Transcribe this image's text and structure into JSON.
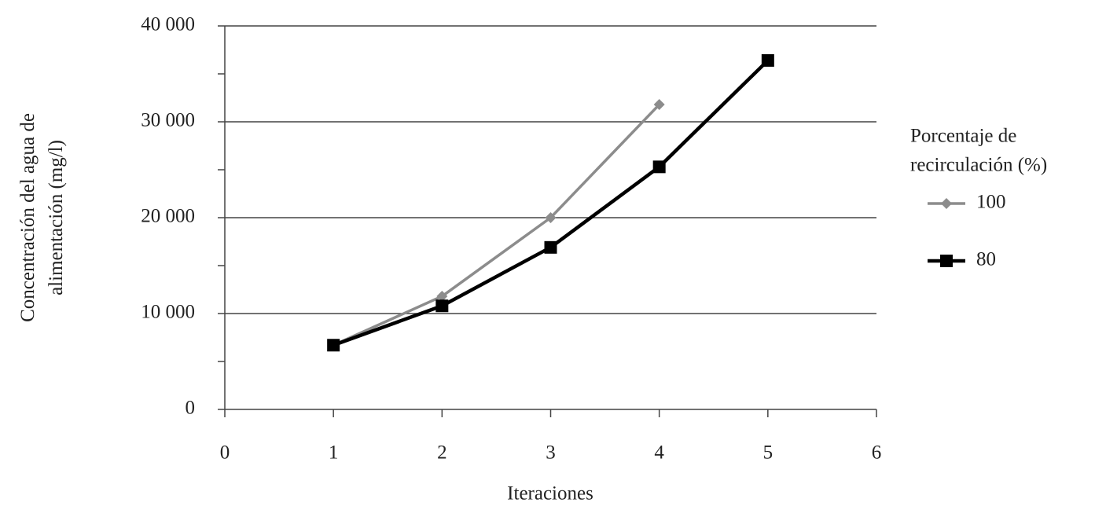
{
  "chart_data": {
    "type": "line",
    "y_label": [
      "Concentración del agua de",
      "alimentación (mg/l)"
    ],
    "x_label": "Iteraciones",
    "legend_title": [
      "Porcentaje de",
      "recirculación (%)"
    ],
    "legend_position": "right",
    "x": [
      1,
      2,
      3,
      4,
      5
    ],
    "series": [
      {
        "name": "100",
        "color": "#8c8c8c",
        "marker": "diamond",
        "values": [
          6700,
          11800,
          20000,
          31800,
          null
        ]
      },
      {
        "name": "80",
        "color": "#000000",
        "marker": "square",
        "values": [
          6700,
          10800,
          16900,
          25300,
          36400
        ]
      }
    ],
    "xlim": [
      0,
      6
    ],
    "xticks": [
      0,
      1,
      2,
      3,
      4,
      5,
      6
    ],
    "ylim": [
      0,
      40000
    ],
    "yticks": [
      0,
      {
        "value": 10000,
        "label": "10 000"
      },
      {
        "value": 20000,
        "label": "20 000"
      },
      {
        "value": 30000,
        "label": "30 000"
      },
      {
        "value": 40000,
        "label": "40 000"
      }
    ],
    "yminorticks": [
      5000,
      15000,
      25000,
      35000
    ],
    "grid": true
  }
}
